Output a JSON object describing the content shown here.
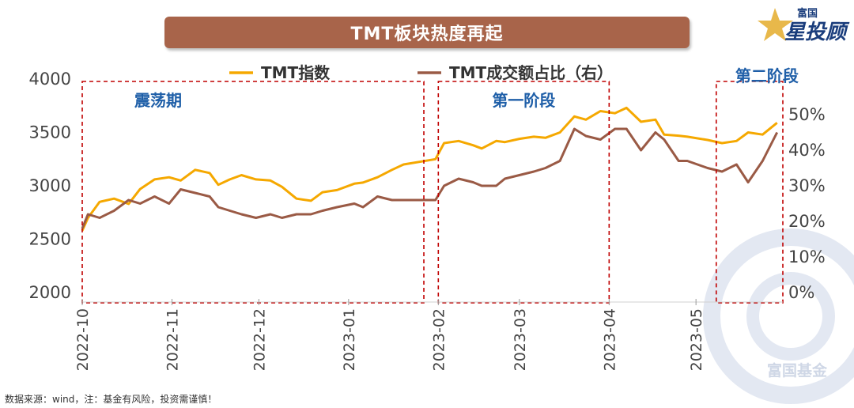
{
  "header": {
    "title": "TMT板块热度再起"
  },
  "logo": {
    "sub": "富国",
    "main": "星投顾",
    "watermark": "富国基金"
  },
  "footer": {
    "source": "数据来源：wind，注：基金有风险，投资需谨慎！"
  },
  "colors": {
    "tmt_index": "#f5a800",
    "turnover_ratio": "#9a5a45",
    "title_bar": "#a8644a",
    "annotation": "#1f5fa8",
    "box": "#c00000"
  },
  "chart_data": {
    "type": "line",
    "title": "",
    "x_ticks": [
      "2022-10",
      "2022-11",
      "2022-12",
      "2023-01",
      "2023-02",
      "2023-03",
      "2023-04",
      "2023-05"
    ],
    "x_range": [
      "2022-10-01",
      "2023-05-31"
    ],
    "left_axis": {
      "ticks": [
        "4000",
        "3500",
        "3000",
        "2500",
        "2000"
      ],
      "range": [
        2000,
        4000
      ]
    },
    "right_axis": {
      "ticks": [
        "50%",
        "40%",
        "30%",
        "20%",
        "10%",
        "0%"
      ],
      "range": [
        0,
        60
      ]
    },
    "legend_position": "top",
    "series": [
      {
        "name": "TMT指数",
        "axis": "left",
        "color": "#f5a800",
        "x": [
          "2022-10-01",
          "2022-10-03",
          "2022-10-07",
          "2022-10-12",
          "2022-10-17",
          "2022-10-21",
          "2022-10-26",
          "2022-10-31",
          "2022-11-04",
          "2022-11-09",
          "2022-11-14",
          "2022-11-17",
          "2022-11-21",
          "2022-11-25",
          "2022-11-30",
          "2022-12-05",
          "2022-12-09",
          "2022-12-14",
          "2022-12-19",
          "2022-12-23",
          "2022-12-28",
          "2023-01-03",
          "2023-01-06",
          "2023-01-11",
          "2023-01-16",
          "2023-01-20",
          "2023-01-31",
          "2023-02-03",
          "2023-02-08",
          "2023-02-13",
          "2023-02-16",
          "2023-02-21",
          "2023-02-24",
          "2023-03-01",
          "2023-03-06",
          "2023-03-10",
          "2023-03-15",
          "2023-03-20",
          "2023-03-24",
          "2023-03-29",
          "2023-04-03",
          "2023-04-07",
          "2023-04-12",
          "2023-04-17",
          "2023-04-20",
          "2023-04-25",
          "2023-04-28",
          "2023-05-05",
          "2023-05-10",
          "2023-05-15",
          "2023-05-19",
          "2023-05-24",
          "2023-05-29"
        ],
        "values": [
          2580,
          2700,
          2850,
          2880,
          2830,
          2970,
          3060,
          3080,
          3050,
          3150,
          3120,
          3010,
          3060,
          3100,
          3060,
          3050,
          2990,
          2880,
          2860,
          2940,
          2960,
          3020,
          3030,
          3080,
          3150,
          3200,
          3250,
          3400,
          3420,
          3380,
          3350,
          3420,
          3410,
          3440,
          3460,
          3450,
          3500,
          3650,
          3620,
          3700,
          3680,
          3730,
          3600,
          3620,
          3480,
          3470,
          3460,
          3430,
          3400,
          3420,
          3500,
          3480,
          3590
        ]
      },
      {
        "name": "TMT成交额占比（右）",
        "axis": "right",
        "color": "#9a5a45",
        "x": [
          "2022-10-01",
          "2022-10-03",
          "2022-10-07",
          "2022-10-12",
          "2022-10-17",
          "2022-10-21",
          "2022-10-26",
          "2022-10-31",
          "2022-11-04",
          "2022-11-09",
          "2022-11-14",
          "2022-11-17",
          "2022-11-21",
          "2022-11-25",
          "2022-11-30",
          "2022-12-05",
          "2022-12-09",
          "2022-12-14",
          "2022-12-19",
          "2022-12-23",
          "2022-12-28",
          "2023-01-03",
          "2023-01-06",
          "2023-01-11",
          "2023-01-16",
          "2023-01-20",
          "2023-01-31",
          "2023-02-03",
          "2023-02-08",
          "2023-02-13",
          "2023-02-16",
          "2023-02-21",
          "2023-02-24",
          "2023-03-01",
          "2023-03-06",
          "2023-03-10",
          "2023-03-15",
          "2023-03-20",
          "2023-03-24",
          "2023-03-29",
          "2023-04-03",
          "2023-04-07",
          "2023-04-12",
          "2023-04-17",
          "2023-04-20",
          "2023-04-25",
          "2023-04-28",
          "2023-05-05",
          "2023-05-10",
          "2023-05-15",
          "2023-05-19",
          "2023-05-24",
          "2023-05-29"
        ],
        "values": [
          18,
          22,
          21,
          23,
          26,
          25,
          27,
          25,
          29,
          28,
          27,
          24,
          23,
          22,
          21,
          22,
          21,
          22,
          22,
          23,
          24,
          25,
          24,
          27,
          26,
          26,
          26,
          30,
          32,
          31,
          30,
          30,
          32,
          33,
          34,
          35,
          37,
          46,
          44,
          43,
          46,
          46,
          40,
          45,
          43,
          37,
          37,
          35,
          34,
          36,
          31,
          37,
          45
        ]
      }
    ],
    "annotations": [
      {
        "label": "震荡期",
        "from": "2022-10-01",
        "to": "2023-01-27"
      },
      {
        "label": "第一阶段",
        "from": "2023-02-01",
        "to": "2023-04-01"
      },
      {
        "label": "第二阶段",
        "from": "2023-05-08",
        "to": "2023-05-31"
      }
    ]
  }
}
